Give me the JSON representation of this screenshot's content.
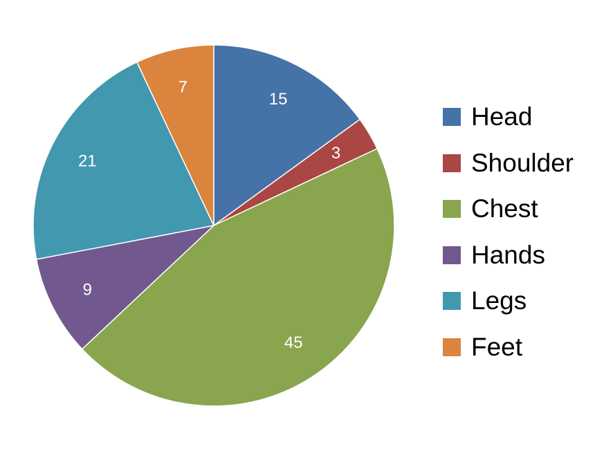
{
  "chart_data": {
    "type": "pie",
    "title": "",
    "categories": [
      "Head",
      "Shoulder",
      "Chest",
      "Hands",
      "Legs",
      "Feet"
    ],
    "values": [
      15,
      3,
      45,
      9,
      21,
      7
    ],
    "colors": [
      "#4572A7",
      "#AA4643",
      "#89A54E",
      "#71588F",
      "#4198AF",
      "#DB843D"
    ],
    "start_angle_deg": 0,
    "direction": "clockwise",
    "data_labels": true,
    "legend": {
      "position": "right"
    }
  },
  "legend": {
    "items": [
      {
        "label": "Head",
        "color": "#4572A7"
      },
      {
        "label": "Shoulder",
        "color": "#AA4643"
      },
      {
        "label": "Chest",
        "color": "#89A54E"
      },
      {
        "label": "Hands",
        "color": "#71588F"
      },
      {
        "label": "Legs",
        "color": "#4198AF"
      },
      {
        "label": "Feet",
        "color": "#DB843D"
      }
    ]
  }
}
